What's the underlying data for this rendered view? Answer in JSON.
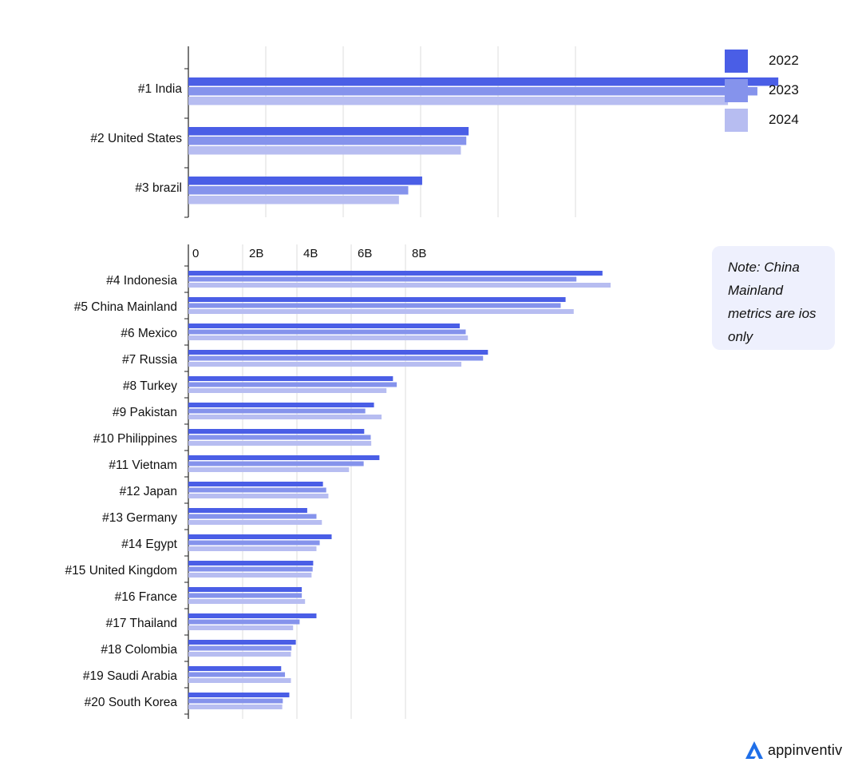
{
  "legend": [
    {
      "label": "2022",
      "color": "#4a5ee6"
    },
    {
      "label": "2023",
      "color": "#8593ec"
    },
    {
      "label": "2024",
      "color": "#b7bdf1"
    }
  ],
  "note": {
    "text": "Note: China Mainland metrics are ios only"
  },
  "brand": {
    "name": "appinventiv"
  },
  "chart_data": [
    {
      "type": "bar",
      "orientation": "horizontal",
      "title": "",
      "xlabel": "",
      "ylabel": "",
      "xlim": [
        0,
        8
      ],
      "grid": true,
      "legend_position": "top-right",
      "categories": [
        "#1 India",
        "#2 United States",
        "#3 brazil"
      ],
      "series": [
        {
          "name": "2022",
          "values": [
            7.62,
            3.62,
            3.02
          ]
        },
        {
          "name": "2023",
          "values": [
            7.35,
            3.59,
            2.84
          ]
        },
        {
          "name": "2024",
          "values": [
            6.97,
            3.52,
            2.72
          ]
        }
      ]
    },
    {
      "type": "bar",
      "orientation": "horizontal",
      "title": "",
      "xlabel": "",
      "ylabel": "",
      "xlim": [
        0,
        8
      ],
      "xticks": [
        "0",
        "2B",
        "4B",
        "6B",
        "8B"
      ],
      "grid": true,
      "categories": [
        "#4 Indonesia",
        "#5 China Mainland",
        "#6 Mexico",
        "#7 Russia",
        "#8 Turkey",
        "#9 Pakistan",
        "#10 Philippines",
        "#11 Vietnam",
        "#12 Japan",
        "#13 Germany",
        "#14 Egypt",
        "#15 United Kingdom",
        "#16 France",
        "#17 Thailand",
        "#18 Colombia",
        "#19 Saudi Arabia",
        "#20 South Korea"
      ],
      "series": [
        {
          "name": "2022",
          "values": [
            7.63,
            6.95,
            5.0,
            5.52,
            3.77,
            3.42,
            3.24,
            3.52,
            2.48,
            2.19,
            2.64,
            2.3,
            2.09,
            2.36,
            1.98,
            1.71,
            1.86
          ]
        },
        {
          "name": "2023",
          "values": [
            7.15,
            6.86,
            5.11,
            5.43,
            3.84,
            3.26,
            3.36,
            3.23,
            2.54,
            2.36,
            2.42,
            2.29,
            2.09,
            2.05,
            1.9,
            1.78,
            1.74
          ]
        },
        {
          "name": "2024",
          "values": [
            7.78,
            7.1,
            5.15,
            5.03,
            3.65,
            3.56,
            3.37,
            2.96,
            2.58,
            2.46,
            2.36,
            2.27,
            2.15,
            1.93,
            1.89,
            1.89,
            1.73
          ]
        }
      ]
    }
  ]
}
